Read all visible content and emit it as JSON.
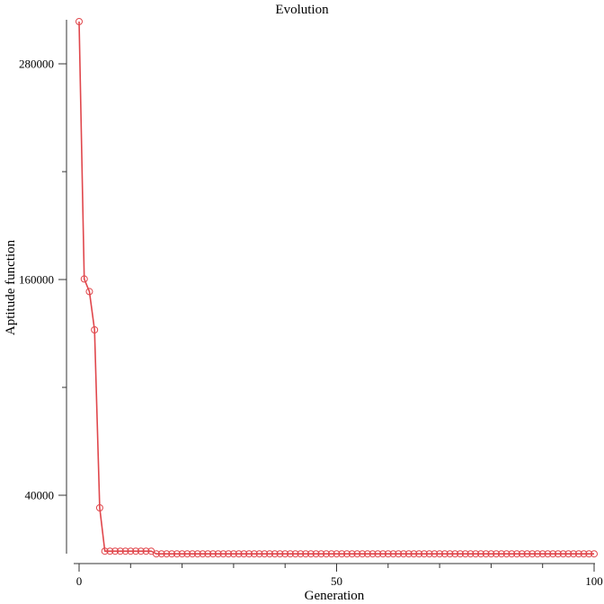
{
  "chart_data": {
    "type": "line",
    "title": "Evolution",
    "xlabel": "Generation",
    "ylabel": "Aptitude function",
    "xlim": [
      0,
      100
    ],
    "ylim": [
      7000,
      304000
    ],
    "x_ticks": [
      0,
      50,
      100
    ],
    "x_minor_ticks": [
      10,
      20,
      30,
      40,
      60,
      70,
      80,
      90
    ],
    "y_ticks": [
      40000,
      160000,
      280000
    ],
    "y_minor_ticks": [
      100000,
      220000
    ],
    "grid": false,
    "legend": "none",
    "series": [
      {
        "color": "#e0474c",
        "marker": "circle",
        "x": [
          0,
          1,
          2,
          3,
          4,
          5,
          6,
          7,
          8,
          9,
          10,
          11,
          12,
          13,
          14,
          15,
          16,
          17,
          18,
          19,
          20,
          21,
          22,
          23,
          24,
          25,
          26,
          27,
          28,
          29,
          30,
          31,
          32,
          33,
          34,
          35,
          36,
          37,
          38,
          39,
          40,
          41,
          42,
          43,
          44,
          45,
          46,
          47,
          48,
          49,
          50,
          51,
          52,
          53,
          54,
          55,
          56,
          57,
          58,
          59,
          60,
          61,
          62,
          63,
          64,
          65,
          66,
          67,
          68,
          69,
          70,
          71,
          72,
          73,
          74,
          75,
          76,
          77,
          78,
          79,
          80,
          81,
          82,
          83,
          84,
          85,
          86,
          87,
          88,
          89,
          90,
          91,
          92,
          93,
          94,
          95,
          96,
          97,
          98,
          99,
          100
        ],
        "values": [
          303500,
          160300,
          153300,
          132000,
          33000,
          8900,
          8900,
          8900,
          8900,
          8900,
          8900,
          8900,
          8900,
          8900,
          8900,
          7400,
          7400,
          7400,
          7400,
          7400,
          7400,
          7400,
          7400,
          7400,
          7400,
          7400,
          7400,
          7400,
          7400,
          7400,
          7400,
          7400,
          7400,
          7400,
          7400,
          7400,
          7400,
          7400,
          7400,
          7400,
          7400,
          7400,
          7400,
          7400,
          7400,
          7400,
          7400,
          7400,
          7400,
          7400,
          7400,
          7400,
          7400,
          7400,
          7400,
          7400,
          7400,
          7400,
          7400,
          7400,
          7400,
          7400,
          7400,
          7400,
          7400,
          7400,
          7400,
          7400,
          7400,
          7400,
          7400,
          7400,
          7400,
          7400,
          7400,
          7400,
          7400,
          7400,
          7400,
          7400,
          7400,
          7400,
          7400,
          7400,
          7400,
          7400,
          7400,
          7400,
          7400,
          7400,
          7400,
          7400,
          7400,
          7400,
          7400,
          7400,
          7400,
          7400,
          7400,
          7400,
          7400
        ]
      }
    ]
  }
}
